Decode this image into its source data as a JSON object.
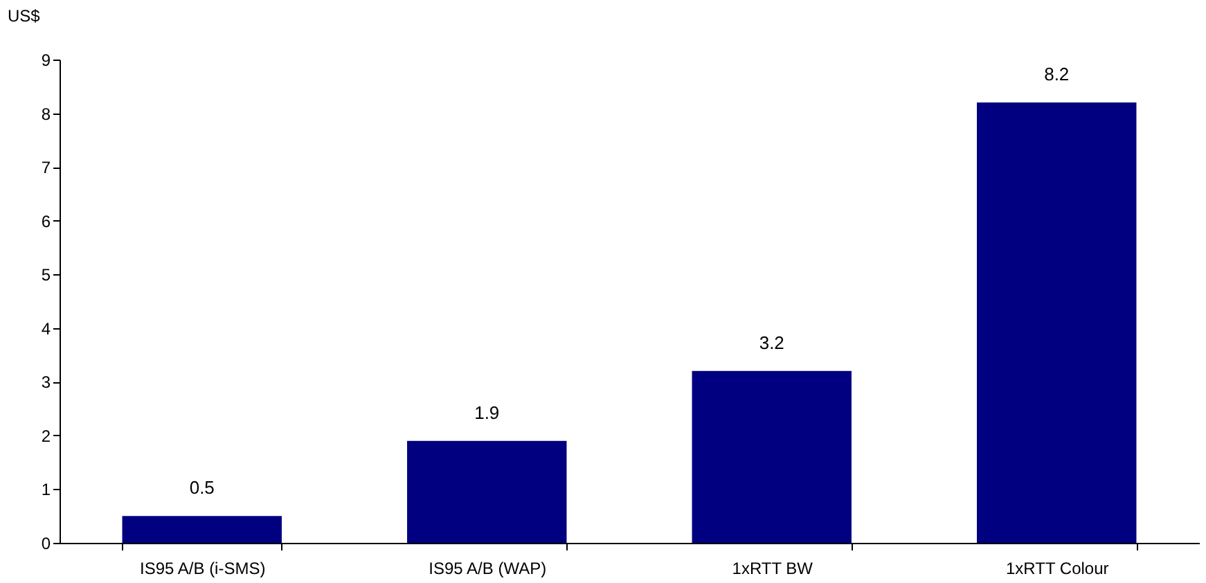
{
  "chart_data": {
    "type": "bar",
    "ylabel": "US$",
    "categories": [
      "IS95 A/B (i-SMS)",
      "IS95 A/B (WAP)",
      "1xRTT BW",
      "1xRTT Colour"
    ],
    "values": [
      0.5,
      1.9,
      3.2,
      8.2
    ],
    "color": "#000080",
    "ylim": [
      0,
      9
    ],
    "yticks": [
      0,
      1,
      2,
      3,
      4,
      5,
      6,
      7,
      8,
      9
    ],
    "grid": false,
    "data_labels": true
  }
}
